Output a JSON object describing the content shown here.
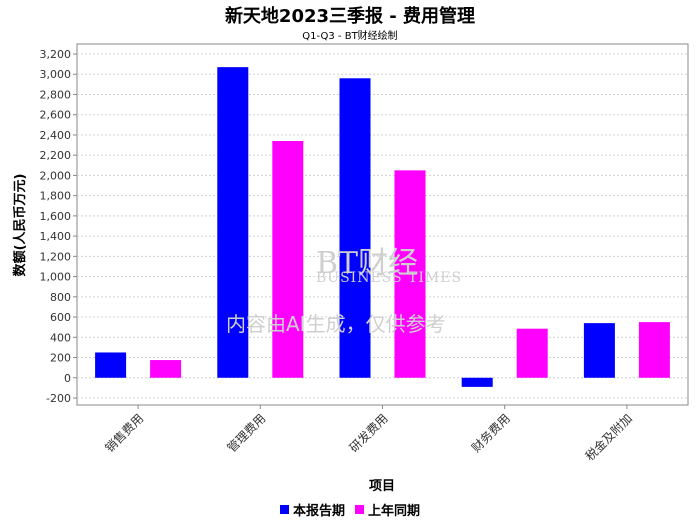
{
  "chart_data": {
    "type": "bar",
    "title": "新天地2023三季报 - 费用管理",
    "subtitle": "Q1-Q3 - BT财经绘制",
    "xlabel": "项目",
    "ylabel": "数额(人民币万元)",
    "categories": [
      "销售费用",
      "管理费用",
      "研发费用",
      "财务费用",
      "税金及附加"
    ],
    "series": [
      {
        "name": "本报告期",
        "color": "#0000ff",
        "values": [
          250,
          3070,
          2960,
          -90,
          540
        ]
      },
      {
        "name": "上年同期",
        "color": "#ff00ff",
        "values": [
          175,
          2340,
          2050,
          485,
          550
        ]
      }
    ],
    "ylim": [
      -200,
      3200
    ],
    "yticks": [
      -200,
      0,
      200,
      400,
      600,
      800,
      1000,
      1200,
      1400,
      1600,
      1800,
      2000,
      2200,
      2400,
      2600,
      2800,
      3000,
      3200
    ],
    "grid": true,
    "legend": "bottom"
  },
  "watermark": {
    "brand": "BT财经",
    "brand_en": "BUSINESS TIMES",
    "notice": "内容由AI生成，仅供参考"
  }
}
